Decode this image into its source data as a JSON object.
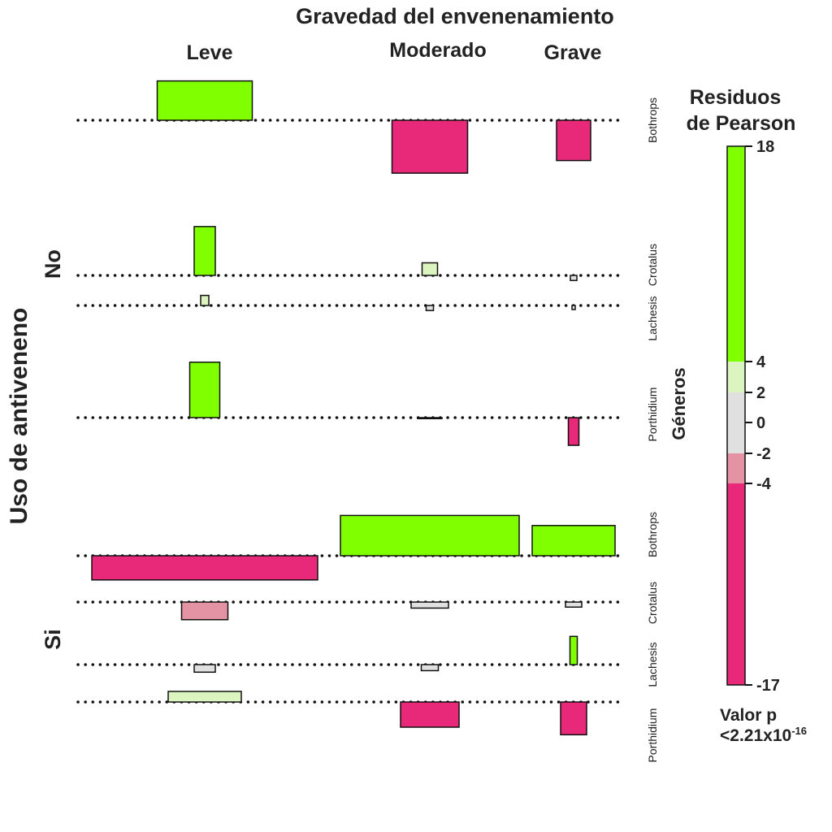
{
  "chart_data": {
    "type": "association-plot",
    "title": "Gravedad del envenenamiento",
    "column_labels": [
      "Leve",
      "Moderado",
      "Grave"
    ],
    "row_group_label": "Uso de antiveneno",
    "row_groups": [
      "No",
      "Si"
    ],
    "genus_label": "Géneros",
    "genera": [
      "Bothrops",
      "Crotalus",
      "Lachesis",
      "Porthidium"
    ],
    "legend": {
      "title_line1": "Residuos",
      "title_line2": "de Pearson",
      "ticks": [
        18,
        4,
        2,
        0,
        -2,
        -4,
        -17
      ],
      "p_label": "Valor p",
      "p_value": "<2.21x10",
      "p_exponent": "-16",
      "colors": {
        "strong_pos": "#80ff00",
        "mild_pos": "#dcf5c0",
        "neutral": "#e0e0e0",
        "mild_neg": "#e493a4",
        "strong_neg": "#e8297a"
      }
    },
    "residuals": [
      {
        "antiveneno": "No",
        "genus": "Bothrops",
        "values": [
          7.8,
          -10.5,
          -8.0
        ]
      },
      {
        "antiveneno": "No",
        "genus": "Crotalus",
        "values": [
          9.7,
          2.5,
          -1.0
        ]
      },
      {
        "antiveneno": "No",
        "genus": "Lachesis",
        "values": [
          2.0,
          -1.0,
          -0.8
        ]
      },
      {
        "antiveneno": "No",
        "genus": "Porthidium",
        "values": [
          11.0,
          -0.2,
          -5.5
        ]
      },
      {
        "antiveneno": "Si",
        "genus": "Bothrops",
        "values": [
          -4.8,
          8.0,
          6.0
        ]
      },
      {
        "antiveneno": "Si",
        "genus": "Crotalus",
        "values": [
          -3.5,
          -1.2,
          -1.0
        ]
      },
      {
        "antiveneno": "Si",
        "genus": "Lachesis",
        "values": [
          -1.5,
          -1.2,
          5.6
        ]
      },
      {
        "antiveneno": "Si",
        "genus": "Porthidium",
        "values": [
          2.1,
          -5.0,
          -6.5
        ]
      }
    ]
  }
}
